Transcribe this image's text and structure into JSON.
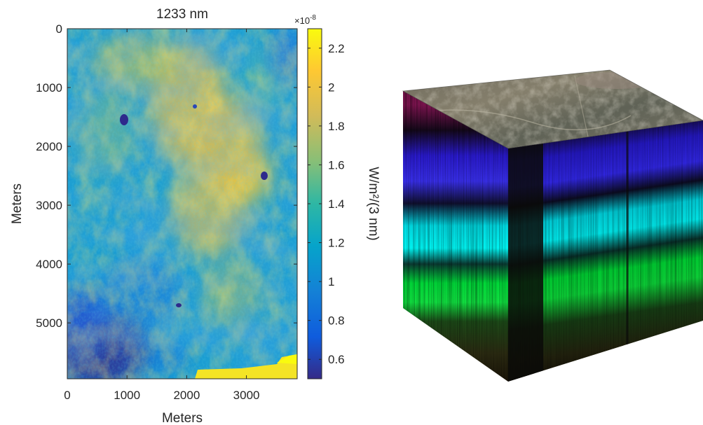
{
  "chart_data": [
    {
      "type": "heatmap",
      "title": "1233 nm",
      "xlabel": "Meters",
      "ylabel": "Meters",
      "xlim": [
        0,
        3850
      ],
      "ylim": [
        5950,
        0
      ],
      "x_ticks": [
        "0",
        "1000",
        "2000",
        "3000"
      ],
      "x_tick_values": [
        0,
        1000,
        2000,
        3000
      ],
      "y_ticks": [
        "0",
        "1000",
        "2000",
        "3000",
        "4000",
        "5000"
      ],
      "y_tick_values": [
        0,
        1000,
        2000,
        3000,
        4000,
        5000
      ],
      "colorbar": {
        "label": "W/m²/(3 nm)",
        "exponent": "×10",
        "exponent_power": "-8",
        "ticks": [
          "0.6",
          "0.8",
          "1",
          "1.2",
          "1.4",
          "1.6",
          "1.8",
          "2",
          "2.2"
        ],
        "tick_values": [
          0.6,
          0.8,
          1.0,
          1.2,
          1.4,
          1.6,
          1.8,
          2.0,
          2.2
        ],
        "range": [
          0.5,
          2.3
        ],
        "colormap": "parula"
      },
      "colors": {
        "low": "#352a87",
        "mid_low": "#0f5cdd",
        "mid": "#14b5ae",
        "mid_high": "#9ab92b",
        "high": "#f9fb0e"
      }
    },
    {
      "type": "other",
      "description_visible": "hyperspectral image cube",
      "band_colors": [
        "#7a0f4a",
        "#1a1ae0",
        "#00e6e6",
        "#00d832",
        "#2a2a14"
      ],
      "top_colors": [
        "#5a5a4e",
        "#7b7868",
        "#4e5248"
      ]
    }
  ]
}
